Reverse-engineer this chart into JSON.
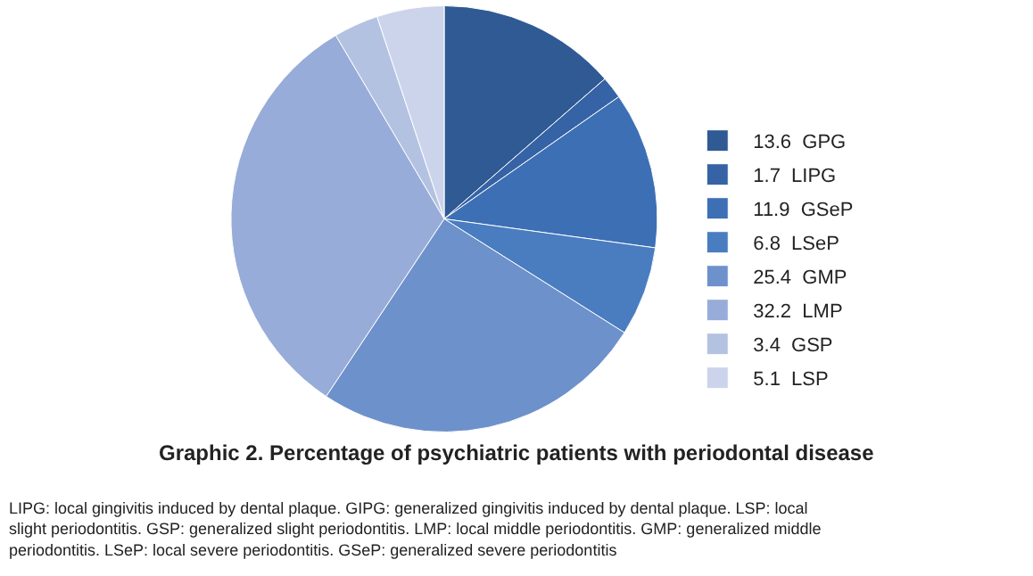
{
  "chart_data": {
    "type": "pie",
    "title": "Graphic 2. Percentage of psychiatric patients with periodontal disease",
    "categories": [
      "GPG",
      "LIPG",
      "GSeP",
      "LSeP",
      "GMP",
      "LMP",
      "GSP",
      "LSP"
    ],
    "values": [
      13.6,
      1.7,
      11.9,
      6.8,
      25.4,
      32.2,
      3.4,
      5.1
    ],
    "value_labels": [
      "13.6",
      "1.7",
      "11.9",
      "6.8",
      "25.4",
      "32.2",
      "3.4",
      "5.1"
    ],
    "colors": [
      "#2f5a94",
      "#3563a5",
      "#3d6fb5",
      "#4a7cc0",
      "#6d91cb",
      "#97acd8",
      "#b4c2e2",
      "#ccd4ec"
    ],
    "legend": "right",
    "annotations": [
      "LIPG: local gingivitis induced by dental plaque. GIPG: generalized gingivitis induced by dental plaque. LSP: local slight periodontitis. GSP: generalized slight periodontitis. LMP: local middle periodontitis. GMP: generalized middle periodontitis. LSeP: local severe periodontitis. GSeP: generalized severe periodontitis"
    ]
  }
}
